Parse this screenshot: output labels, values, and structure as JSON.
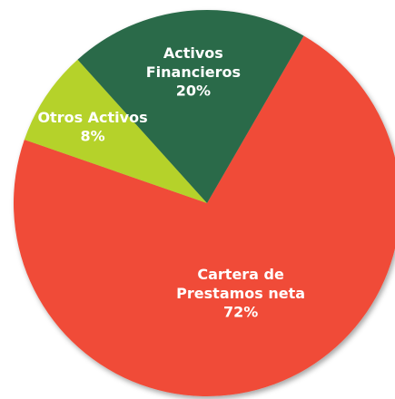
{
  "chart_data": {
    "type": "pie",
    "categories": [
      "Cartera de Prestamos neta",
      "Otros Activos",
      "Activos Financieros"
    ],
    "values": [
      72,
      8,
      20
    ],
    "value_labels": [
      "72%",
      "8%",
      "20%"
    ],
    "colors": [
      "#f04b37",
      "#b5d22a",
      "#2a6b48"
    ],
    "start_angle": 30
  }
}
